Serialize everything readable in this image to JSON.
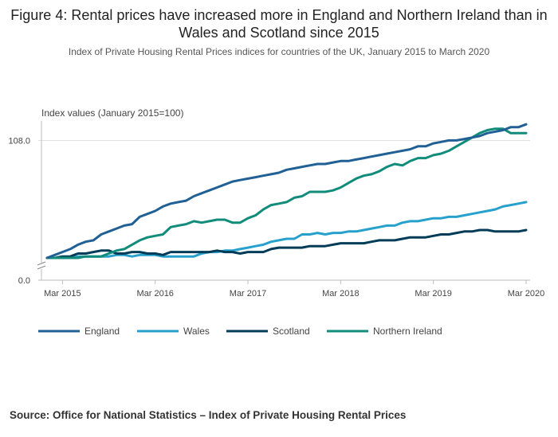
{
  "title": "Figure 4: Rental prices have increased more in England and Northern Ireland than in Wales and Scotland since 2015",
  "subtitle": "Index of Private Housing Rental Prices indices for countries of the UK, January 2015 to March 2020",
  "source": "Source: Office for National Statistics – Index of Private Housing Rental Prices",
  "colors": {
    "England": "#206095",
    "Wales": "#27a0cc",
    "Scotland": "#003c57",
    "Northern Ireland": "#118c7b",
    "grid": "#e0e0e0",
    "axis": "#bbbbbb"
  },
  "chart_data": {
    "type": "line",
    "ylabel": "Index values (January 2015=100)",
    "yticks": [
      "0.0",
      "108.0"
    ],
    "ytick_values": [
      100,
      108
    ],
    "ylim": [
      100,
      109
    ],
    "y_axis_break": true,
    "x_start": "2015-01",
    "x_end": "2020-03",
    "xticks": [
      "Mar 2015",
      "Mar 2016",
      "Mar 2017",
      "Mar 2018",
      "Mar 2019",
      "Mar 2020"
    ],
    "xtick_months": [
      2,
      14,
      26,
      38,
      50,
      62
    ],
    "legend_position": "bottom",
    "series": [
      {
        "name": "England",
        "values": [
          100.0,
          100.2,
          100.4,
          100.6,
          100.9,
          101.1,
          101.2,
          101.6,
          101.8,
          102.0,
          102.2,
          102.3,
          102.8,
          103.0,
          103.2,
          103.5,
          103.7,
          103.8,
          103.9,
          104.2,
          104.4,
          104.6,
          104.8,
          105.0,
          105.2,
          105.3,
          105.4,
          105.5,
          105.6,
          105.7,
          105.8,
          106.0,
          106.1,
          106.2,
          106.3,
          106.4,
          106.4,
          106.5,
          106.6,
          106.6,
          106.7,
          106.8,
          106.9,
          107.0,
          107.1,
          107.2,
          107.3,
          107.4,
          107.6,
          107.6,
          107.8,
          107.9,
          108.0,
          108.0,
          108.1,
          108.2,
          108.3,
          108.5,
          108.6,
          108.7,
          108.9,
          108.9,
          109.1
        ]
      },
      {
        "name": "Wales",
        "values": [
          100.0,
          100.0,
          100.0,
          100.0,
          100.1,
          100.1,
          100.1,
          100.1,
          100.1,
          100.2,
          100.2,
          100.1,
          100.2,
          100.2,
          100.2,
          100.1,
          100.1,
          100.1,
          100.1,
          100.1,
          100.3,
          100.4,
          100.4,
          100.5,
          100.5,
          100.6,
          100.7,
          100.8,
          100.9,
          101.1,
          101.2,
          101.3,
          101.3,
          101.6,
          101.6,
          101.7,
          101.6,
          101.7,
          101.7,
          101.8,
          101.8,
          101.9,
          102.0,
          102.1,
          102.2,
          102.2,
          102.4,
          102.5,
          102.5,
          102.6,
          102.7,
          102.7,
          102.8,
          102.8,
          102.9,
          103.0,
          103.1,
          103.2,
          103.3,
          103.5,
          103.6,
          103.7,
          103.8
        ]
      },
      {
        "name": "Scotland",
        "values": [
          100.0,
          100.0,
          100.1,
          100.1,
          100.3,
          100.3,
          100.4,
          100.5,
          100.5,
          100.3,
          100.3,
          100.4,
          100.4,
          100.3,
          100.3,
          100.2,
          100.4,
          100.4,
          100.4,
          100.4,
          100.4,
          100.4,
          100.5,
          100.4,
          100.4,
          100.3,
          100.4,
          100.4,
          100.4,
          100.6,
          100.7,
          100.7,
          100.7,
          100.7,
          100.8,
          100.8,
          100.8,
          100.9,
          101.0,
          101.0,
          101.0,
          101.0,
          101.1,
          101.2,
          101.2,
          101.2,
          101.3,
          101.4,
          101.4,
          101.4,
          101.5,
          101.6,
          101.6,
          101.7,
          101.8,
          101.8,
          101.9,
          101.9,
          101.8,
          101.8,
          101.8,
          101.8,
          101.9
        ]
      },
      {
        "name": "Northern Ireland",
        "values": [
          100.0,
          100.0,
          100.0,
          100.0,
          100.0,
          100.1,
          100.1,
          100.1,
          100.3,
          100.5,
          100.6,
          100.9,
          101.2,
          101.4,
          101.5,
          101.6,
          102.1,
          102.2,
          102.3,
          102.5,
          102.4,
          102.5,
          102.6,
          102.6,
          102.4,
          102.4,
          102.7,
          102.9,
          103.3,
          103.6,
          103.7,
          103.8,
          104.1,
          104.2,
          104.5,
          104.5,
          104.5,
          104.6,
          104.8,
          105.1,
          105.4,
          105.6,
          105.7,
          105.9,
          106.2,
          106.4,
          106.3,
          106.6,
          106.8,
          106.8,
          107.0,
          107.1,
          107.3,
          107.6,
          107.9,
          108.2,
          108.5,
          108.7,
          108.8,
          108.8,
          108.5,
          108.5,
          108.5
        ]
      }
    ]
  }
}
